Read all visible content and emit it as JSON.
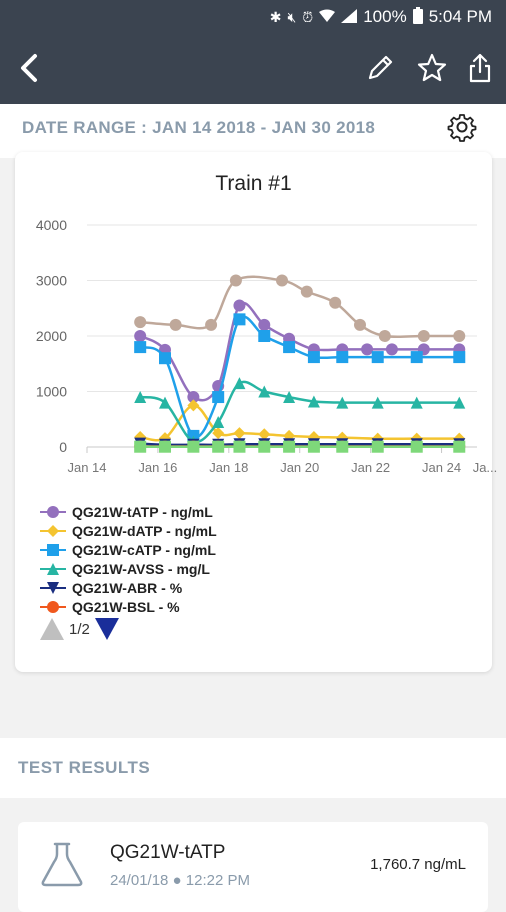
{
  "status_bar": {
    "battery": "100%",
    "time": "5:04 PM",
    "icons": [
      "bluetooth-icon",
      "mute-icon",
      "alarm-icon",
      "wifi-icon",
      "signal-icon",
      "battery-icon"
    ]
  },
  "app_bar": {
    "icons": [
      "back-arrow-icon",
      "pencil-icon",
      "star-icon",
      "share-icon"
    ]
  },
  "date_range": {
    "label": "DATE RANGE : JAN 14 2018 - JAN 30 2018"
  },
  "chart_data": {
    "type": "line",
    "title": "Train #1",
    "x_tick_labels": [
      "Jan 14",
      "Jan 16",
      "Jan 18",
      "Jan 20",
      "Jan 22",
      "Jan 24",
      "Ja..."
    ],
    "x_ticks_day": [
      14,
      16,
      18,
      20,
      22,
      24,
      26
    ],
    "xlim": [
      14,
      25
    ],
    "y_ticks": [
      0,
      1000,
      2000,
      3000,
      4000
    ],
    "ylim": [
      0,
      4000
    ],
    "grid": true,
    "legend_position": "bottom-left",
    "legend_page": "1/2",
    "series": [
      {
        "name": "",
        "color": "#bfa89a",
        "marker": "circle",
        "x": [
          15.5,
          16.5,
          17.5,
          18.2,
          19.5,
          20.2,
          21,
          21.7,
          22.4,
          23.5,
          24.5
        ],
        "y": [
          2250,
          2200,
          2200,
          3000,
          3000,
          2800,
          2600,
          2200,
          2000,
          2000,
          2000
        ]
      },
      {
        "name": "QG21W-tATP - ng/mL",
        "color": "#9370bd",
        "marker": "circle",
        "x": [
          15.5,
          16.2,
          17,
          17.7,
          18.3,
          19,
          19.7,
          20.4,
          21.2,
          21.9,
          22.6,
          23.5,
          24.5
        ],
        "y": [
          2000,
          1750,
          900,
          1100,
          2550,
          2200,
          1950,
          1760,
          1760,
          1760,
          1760,
          1760,
          1760
        ]
      },
      {
        "name": "QG21W-dATP - ng/mL",
        "color": "#f4c430",
        "marker": "diamond",
        "x": [
          15.5,
          16.2,
          17,
          17.7,
          18.3,
          19,
          19.7,
          20.4,
          21.2,
          22.2,
          23.3,
          24.5
        ],
        "y": [
          180,
          160,
          750,
          250,
          250,
          230,
          200,
          180,
          170,
          150,
          150,
          150
        ]
      },
      {
        "name": "QG21W-cATP - ng/mL",
        "color": "#1fa0ea",
        "marker": "square",
        "x": [
          15.5,
          16.2,
          17,
          17.7,
          18.3,
          19,
          19.7,
          20.4,
          21.2,
          22.2,
          23.3,
          24.5
        ],
        "y": [
          1800,
          1600,
          200,
          900,
          2300,
          2000,
          1800,
          1620,
          1620,
          1620,
          1620,
          1620
        ]
      },
      {
        "name": "QG21W-AVSS - mg/L",
        "color": "#27b5a3",
        "marker": "triangle",
        "x": [
          15.5,
          16.2,
          17,
          17.7,
          18.3,
          19,
          19.7,
          20.4,
          21.2,
          22.2,
          23.3,
          24.5
        ],
        "y": [
          900,
          800,
          100,
          450,
          1150,
          1000,
          900,
          820,
          800,
          800,
          800,
          800
        ]
      },
      {
        "name": "QG21W-ABR - %",
        "color": "#1a2e80",
        "marker": "triangle-down",
        "x": [
          15.5,
          16.2,
          17,
          17.7,
          18.3,
          19,
          19.7,
          20.4,
          21.2,
          22.2,
          23.3,
          24.5
        ],
        "y": [
          60,
          40,
          40,
          40,
          50,
          50,
          50,
          50,
          50,
          50,
          50,
          50
        ]
      },
      {
        "name": "QG21W-BSL - %",
        "color": "#f0581e",
        "marker": "circle",
        "x": [
          15.5,
          16.2,
          17,
          17.7,
          18.3,
          19,
          19.7,
          20.4,
          21.2,
          22.2,
          23.3,
          24.5
        ],
        "y": [
          10,
          10,
          10,
          10,
          10,
          10,
          10,
          10,
          10,
          10,
          10,
          10
        ]
      },
      {
        "name": "",
        "color": "#7ed87a",
        "marker": "square",
        "x": [
          15.5,
          16.2,
          17,
          17.7,
          18.3,
          19,
          19.7,
          20.4,
          21.2,
          22.2,
          23.3,
          24.5
        ],
        "y": [
          5,
          5,
          5,
          5,
          5,
          5,
          5,
          5,
          5,
          5,
          5,
          5
        ]
      }
    ]
  },
  "results": {
    "title": "TEST RESULTS",
    "items": [
      {
        "name": "QG21W-tATP",
        "timestamp": "24/01/18 ● 12:22 PM",
        "value": "1,760.7 ng/mL",
        "icon": "flask-icon"
      }
    ]
  }
}
